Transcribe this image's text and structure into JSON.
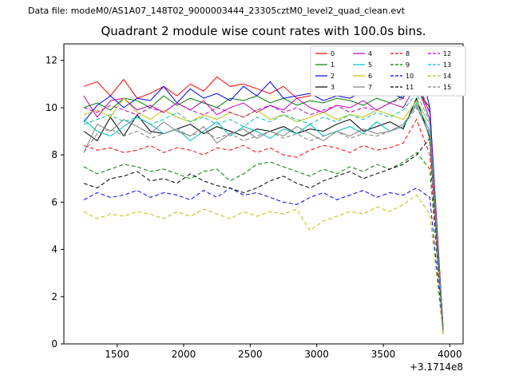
{
  "header": {
    "data_file_label": "Data file: modeM0/AS1A07_148T02_9000003444_23305cztM0_level2_quad_clean.evt"
  },
  "chart_data": {
    "type": "line",
    "title": "Quadrant 2 module wise count rates with 100.0s bins.",
    "xlabel": "",
    "ylabel": "",
    "x_offset_label": "+3.1714e8",
    "xlim": [
      1100,
      4100
    ],
    "ylim": [
      0,
      12.7
    ],
    "xticks": [
      1500,
      2000,
      2500,
      3000,
      3500,
      4000
    ],
    "yticks": [
      0,
      2,
      4,
      6,
      8,
      10,
      12
    ],
    "grid": false,
    "legend_position": "upper right",
    "legend_columns": 4,
    "x": [
      1250,
      1350,
      1450,
      1550,
      1650,
      1750,
      1850,
      1950,
      2050,
      2150,
      2250,
      2350,
      2450,
      2550,
      2650,
      2750,
      2850,
      2950,
      3050,
      3150,
      3250,
      3350,
      3450,
      3550,
      3650,
      3750,
      3850,
      3950
    ],
    "series": [
      {
        "name": "0",
        "color": "#ff0000",
        "dash": false,
        "values": [
          10.9,
          11.1,
          10.5,
          11.2,
          10.4,
          10.6,
          10.9,
          10.5,
          11.0,
          10.7,
          11.3,
          10.9,
          11.0,
          10.8,
          10.6,
          10.9,
          10.4,
          10.5,
          10.8,
          10.6,
          10.9,
          10.7,
          10.8,
          11.0,
          10.6,
          10.9,
          9.8,
          0.7
        ]
      },
      {
        "name": "1",
        "color": "#008000",
        "dash": false,
        "values": [
          10.0,
          10.2,
          9.9,
          10.4,
          10.3,
          10.0,
          10.5,
          10.1,
          10.4,
          10.2,
          10.0,
          10.4,
          10.3,
          10.5,
          10.2,
          10.4,
          10.1,
          10.3,
          10.2,
          10.4,
          10.3,
          10.1,
          10.4,
          10.2,
          10.5,
          10.8,
          10.0,
          0.7
        ]
      },
      {
        "name": "2",
        "color": "#0000ff",
        "dash": false,
        "values": [
          9.4,
          10.1,
          10.5,
          10.0,
          10.4,
          10.3,
          10.9,
          10.2,
          10.8,
          10.4,
          10.6,
          10.3,
          10.9,
          10.5,
          11.1,
          10.4,
          10.5,
          10.6,
          10.3,
          10.5,
          10.4,
          10.7,
          10.5,
          10.6,
          10.4,
          12.4,
          10.0,
          0.6
        ]
      },
      {
        "name": "3",
        "color": "#000000",
        "dash": false,
        "values": [
          9.0,
          8.6,
          9.6,
          8.8,
          9.7,
          9.0,
          8.9,
          9.1,
          9.3,
          8.9,
          9.2,
          9.0,
          8.8,
          9.1,
          9.0,
          9.2,
          8.9,
          9.1,
          9.0,
          9.3,
          9.5,
          9.0,
          9.2,
          9.4,
          9.1,
          10.4,
          8.7,
          0.6
        ]
      },
      {
        "name": "4",
        "color": "#bf00bf",
        "dash": false,
        "values": [
          10.5,
          9.6,
          10.3,
          10.4,
          9.9,
          10.1,
          9.8,
          10.2,
          9.9,
          10.3,
          9.7,
          10.0,
          10.2,
          9.8,
          10.1,
          9.9,
          10.4,
          10.0,
          9.8,
          10.1,
          10.0,
          10.3,
          9.9,
          10.2,
          10.0,
          11.0,
          9.5,
          0.7
        ]
      },
      {
        "name": "5",
        "color": "#00bfbf",
        "dash": false,
        "values": [
          9.5,
          9.0,
          8.8,
          9.2,
          9.6,
          9.3,
          8.9,
          9.1,
          8.6,
          9.0,
          9.4,
          8.8,
          9.2,
          9.0,
          8.7,
          9.1,
          8.9,
          9.3,
          8.8,
          9.0,
          9.2,
          8.9,
          9.4,
          9.0,
          9.2,
          10.2,
          9.0,
          0.5
        ]
      },
      {
        "name": "6",
        "color": "#bfbf00",
        "dash": false,
        "values": [
          9.7,
          9.9,
          9.6,
          10.4,
          9.8,
          9.5,
          9.9,
          9.6,
          9.4,
          9.7,
          9.5,
          9.8,
          9.6,
          9.9,
          9.5,
          9.7,
          9.4,
          9.6,
          9.8,
          9.5,
          9.7,
          9.6,
          9.9,
          9.7,
          9.5,
          10.3,
          9.3,
          0.6
        ]
      },
      {
        "name": "7",
        "color": "#808080",
        "dash": false,
        "values": [
          8.1,
          9.3,
          9.0,
          9.5,
          9.2,
          8.9,
          9.4,
          9.0,
          8.8,
          9.2,
          8.5,
          8.9,
          9.1,
          8.7,
          9.0,
          8.8,
          9.2,
          8.9,
          8.6,
          9.0,
          8.8,
          9.1,
          8.9,
          9.0,
          9.3,
          10.1,
          8.8,
          0.6
        ]
      },
      {
        "name": "8",
        "color": "#ff0000",
        "dash": true,
        "values": [
          8.4,
          8.2,
          8.3,
          8.1,
          8.2,
          8.4,
          8.1,
          8.3,
          8.2,
          8.0,
          8.3,
          8.2,
          8.4,
          8.1,
          8.3,
          8.0,
          7.9,
          8.2,
          8.4,
          8.3,
          8.1,
          8.4,
          8.2,
          8.3,
          8.5,
          9.5,
          8.0,
          0.5
        ]
      },
      {
        "name": "9",
        "color": "#008000",
        "dash": true,
        "values": [
          7.5,
          7.2,
          7.4,
          7.6,
          7.5,
          7.3,
          7.4,
          7.2,
          7.0,
          7.3,
          7.4,
          6.9,
          7.2,
          7.6,
          7.7,
          7.5,
          7.3,
          7.1,
          7.4,
          7.2,
          7.5,
          7.3,
          7.6,
          7.4,
          7.7,
          8.1,
          7.4,
          0.5
        ]
      },
      {
        "name": "10",
        "color": "#0000ff",
        "dash": true,
        "values": [
          6.1,
          6.4,
          6.2,
          6.3,
          6.5,
          6.2,
          6.4,
          6.3,
          6.1,
          6.5,
          6.2,
          6.6,
          6.3,
          6.4,
          6.2,
          6.0,
          5.9,
          6.2,
          6.4,
          6.1,
          6.3,
          6.5,
          6.2,
          6.4,
          6.3,
          6.6,
          6.2,
          0.4
        ]
      },
      {
        "name": "11",
        "color": "#000000",
        "dash": true,
        "values": [
          6.8,
          6.6,
          7.0,
          7.1,
          7.3,
          6.9,
          7.0,
          6.8,
          7.2,
          6.9,
          6.7,
          6.6,
          6.4,
          6.6,
          6.9,
          7.1,
          6.8,
          6.6,
          6.9,
          7.1,
          7.3,
          7.0,
          7.2,
          7.4,
          7.6,
          8.0,
          8.7,
          0.5
        ]
      },
      {
        "name": "12",
        "color": "#bf00bf",
        "dash": true,
        "values": [
          10.0,
          9.8,
          10.1,
          9.9,
          9.7,
          10.0,
          9.8,
          10.2,
          9.9,
          9.7,
          10.0,
          9.8,
          9.6,
          9.9,
          10.1,
          9.8,
          10.0,
          9.7,
          9.9,
          10.1,
          9.8,
          10.0,
          9.9,
          10.2,
          10.4,
          11.2,
          9.8,
          0.6
        ]
      },
      {
        "name": "13",
        "color": "#00bfbf",
        "dash": true,
        "values": [
          9.3,
          9.5,
          9.7,
          9.4,
          9.6,
          9.3,
          9.5,
          9.8,
          9.4,
          9.6,
          9.3,
          9.5,
          9.2,
          9.6,
          9.4,
          9.7,
          9.5,
          9.3,
          9.6,
          9.4,
          9.7,
          9.5,
          9.8,
          9.6,
          9.9,
          10.6,
          9.4,
          0.5
        ]
      },
      {
        "name": "14",
        "color": "#bfbf00",
        "dash": true,
        "values": [
          5.6,
          5.3,
          5.5,
          5.4,
          5.6,
          5.5,
          5.3,
          5.6,
          5.4,
          5.7,
          5.5,
          5.3,
          5.6,
          5.4,
          5.6,
          5.5,
          5.7,
          4.8,
          5.2,
          5.4,
          5.6,
          5.5,
          5.8,
          5.6,
          5.9,
          6.3,
          5.5,
          0.4
        ]
      },
      {
        "name": "15",
        "color": "#808080",
        "dash": true,
        "values": [
          8.1,
          8.9,
          9.1,
          8.8,
          9.0,
          8.7,
          8.9,
          9.1,
          8.8,
          9.0,
          8.7,
          8.9,
          8.6,
          8.8,
          9.0,
          8.7,
          8.9,
          8.6,
          8.8,
          9.0,
          8.7,
          8.9,
          8.8,
          9.0,
          9.2,
          10.0,
          8.9,
          0.5
        ]
      }
    ]
  }
}
